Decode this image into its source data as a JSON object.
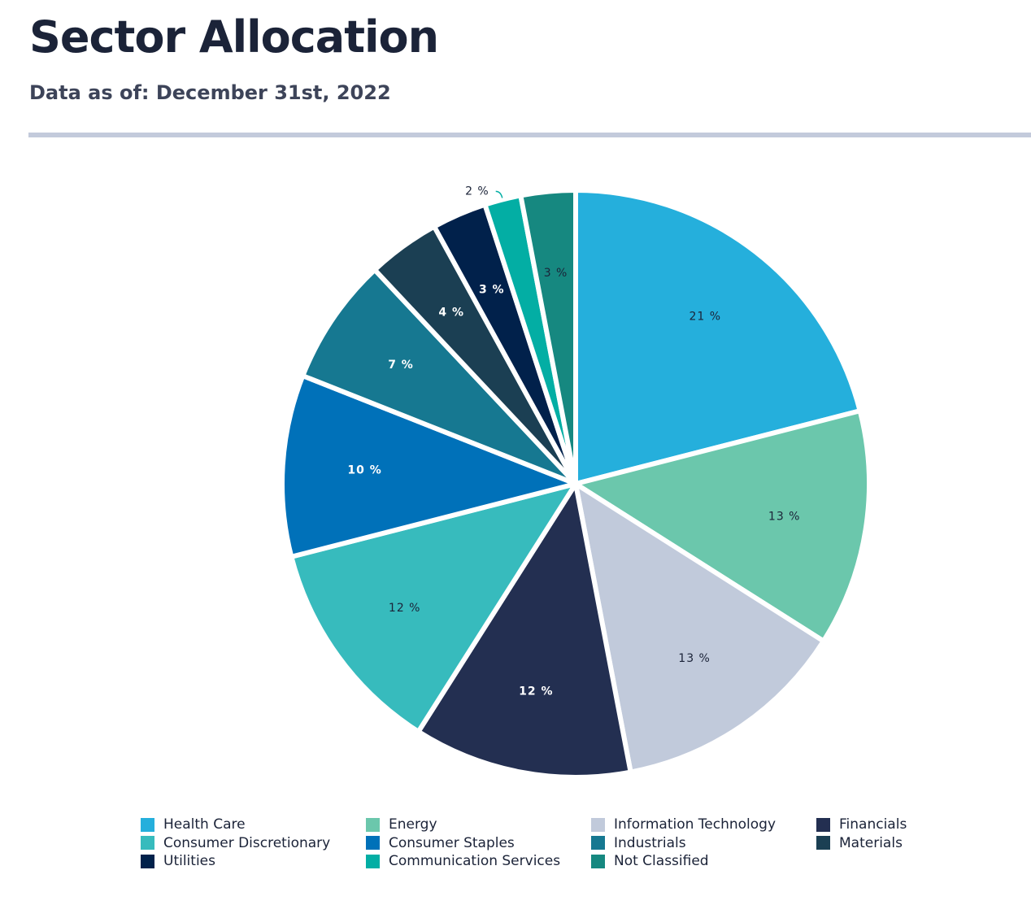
{
  "header": {
    "title": "Sector Allocation",
    "subtitle": "Data as of: December 31st, 2022"
  },
  "chart_data": {
    "type": "pie",
    "title": "",
    "value_suffix": " %",
    "slices": [
      {
        "label": "Health Care",
        "value": 21,
        "color": "#25afdc",
        "text_color": "#1b2338"
      },
      {
        "label": "Energy",
        "value": 13,
        "color": "#6bc7ac",
        "text_color": "#1b2338"
      },
      {
        "label": "Information Technology",
        "value": 13,
        "color": "#c1cadb",
        "text_color": "#1b2338"
      },
      {
        "label": "Financials",
        "value": 12,
        "color": "#232f51",
        "text_color": "#ffffff"
      },
      {
        "label": "Consumer Discretionary",
        "value": 12,
        "color": "#37bbbd",
        "text_color": "#1b2338"
      },
      {
        "label": "Consumer Staples",
        "value": 10,
        "color": "#0071b9",
        "text_color": "#ffffff"
      },
      {
        "label": "Industrials",
        "value": 7,
        "color": "#167891",
        "text_color": "#ffffff"
      },
      {
        "label": "Materials",
        "value": 4,
        "color": "#1b3f53",
        "text_color": "#ffffff"
      },
      {
        "label": "Utilities",
        "value": 3,
        "color": "#01214b",
        "text_color": "#ffffff"
      },
      {
        "label": "Communication Services",
        "value": 2,
        "color": "#03aea4",
        "text_color": "#1b2338"
      },
      {
        "label": "Not Classified",
        "value": 3,
        "color": "#168880",
        "text_color": "#1b2338"
      }
    ],
    "legend_placement": "bottom"
  }
}
